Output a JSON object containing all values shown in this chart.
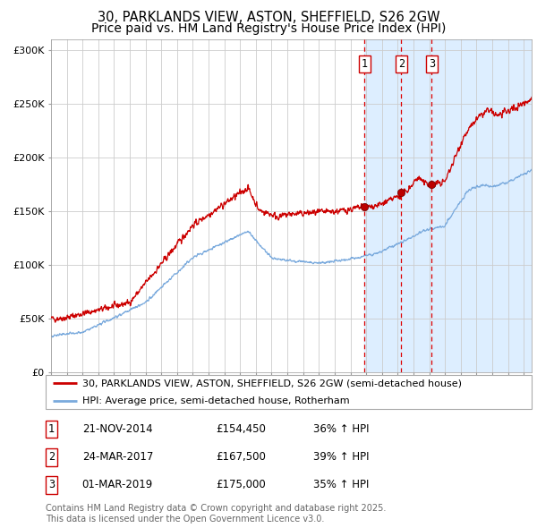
{
  "title1": "30, PARKLANDS VIEW, ASTON, SHEFFIELD, S26 2GW",
  "title2": "Price paid vs. HM Land Registry's House Price Index (HPI)",
  "ylabel_ticks": [
    "£0",
    "£50K",
    "£100K",
    "£150K",
    "£200K",
    "£250K",
    "£300K"
  ],
  "ytick_vals": [
    0,
    50000,
    100000,
    150000,
    200000,
    250000,
    300000
  ],
  "ylim": [
    0,
    310000
  ],
  "xlim_start": 1995.0,
  "xlim_end": 2025.5,
  "plot_bg_color": "#ffffff",
  "shade_start": 2014.88,
  "shade_color": "#ddeeff",
  "red_line_color": "#cc0000",
  "blue_line_color": "#7aaadd",
  "dashed_line_color": "#dd0000",
  "sale_dates": [
    2014.896,
    2017.23,
    2019.165
  ],
  "sale_prices": [
    154450,
    167500,
    175000
  ],
  "sale_labels": [
    "1",
    "2",
    "3"
  ],
  "legend_label_red": "30, PARKLANDS VIEW, ASTON, SHEFFIELD, S26 2GW (semi-detached house)",
  "legend_label_blue": "HPI: Average price, semi-detached house, Rotherham",
  "table_rows": [
    {
      "num": "1",
      "date": "21-NOV-2014",
      "price": "£154,450",
      "pct": "36% ↑ HPI"
    },
    {
      "num": "2",
      "date": "24-MAR-2017",
      "price": "£167,500",
      "pct": "39% ↑ HPI"
    },
    {
      "num": "3",
      "date": "01-MAR-2019",
      "price": "£175,000",
      "pct": "35% ↑ HPI"
    }
  ],
  "footer": "Contains HM Land Registry data © Crown copyright and database right 2025.\nThis data is licensed under the Open Government Licence v3.0.",
  "title_fontsize": 10.5,
  "tick_fontsize": 8,
  "legend_fontsize": 8,
  "table_fontsize": 8.5,
  "footer_fontsize": 7
}
